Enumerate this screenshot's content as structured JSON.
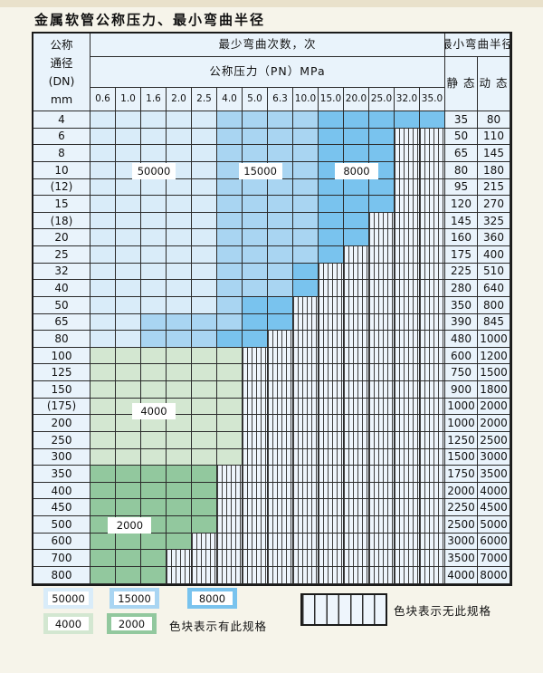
{
  "title": "金属软管公称压力、最小弯曲半径",
  "table": {
    "corner_header": [
      "公称",
      "通径",
      "(DN)",
      "mm"
    ],
    "bend_cycles_header": "最少弯曲次数，次",
    "radius_header": "最小弯曲半径",
    "pressure_header": "公称压力（PN）MPa",
    "static_label": "静 态",
    "dynamic_label": "动 态",
    "pressures": [
      "0.6",
      "1.0",
      "1.6",
      "2.0",
      "2.5",
      "4.0",
      "5.0",
      "6.3",
      "10.0",
      "15.0",
      "20.0",
      "25.0",
      "32.0",
      "35.0"
    ],
    "rows": [
      {
        "dn": "4",
        "static": "35",
        "dynamic": "80",
        "zones": [
          [
            "50000",
            5
          ],
          [
            "15000",
            4
          ],
          [
            "8000",
            5
          ]
        ]
      },
      {
        "dn": "6",
        "static": "50",
        "dynamic": "110",
        "zones": [
          [
            "50000",
            5
          ],
          [
            "15000",
            4
          ],
          [
            "8000",
            3
          ]
        ]
      },
      {
        "dn": "8",
        "static": "65",
        "dynamic": "145",
        "zones": [
          [
            "50000",
            5
          ],
          [
            "15000",
            4
          ],
          [
            "8000",
            3
          ]
        ]
      },
      {
        "dn": "10",
        "static": "80",
        "dynamic": "180",
        "zones": [
          [
            "50000",
            5
          ],
          [
            "15000",
            4
          ],
          [
            "8000",
            3
          ]
        ]
      },
      {
        "dn": "(12)",
        "static": "95",
        "dynamic": "215",
        "zones": [
          [
            "50000",
            5
          ],
          [
            "15000",
            4
          ],
          [
            "8000",
            3
          ]
        ]
      },
      {
        "dn": "15",
        "static": "120",
        "dynamic": "270",
        "zones": [
          [
            "50000",
            5
          ],
          [
            "15000",
            4
          ],
          [
            "8000",
            3
          ]
        ]
      },
      {
        "dn": "(18)",
        "static": "145",
        "dynamic": "325",
        "zones": [
          [
            "50000",
            5
          ],
          [
            "15000",
            4
          ],
          [
            "8000",
            2
          ]
        ]
      },
      {
        "dn": "20",
        "static": "160",
        "dynamic": "360",
        "zones": [
          [
            "50000",
            5
          ],
          [
            "15000",
            4
          ],
          [
            "8000",
            2
          ]
        ]
      },
      {
        "dn": "25",
        "static": "175",
        "dynamic": "400",
        "zones": [
          [
            "50000",
            5
          ],
          [
            "15000",
            4
          ],
          [
            "8000",
            1
          ]
        ]
      },
      {
        "dn": "32",
        "static": "225",
        "dynamic": "510",
        "zones": [
          [
            "50000",
            5
          ],
          [
            "15000",
            3
          ],
          [
            "8000",
            1
          ]
        ]
      },
      {
        "dn": "40",
        "static": "280",
        "dynamic": "640",
        "zones": [
          [
            "50000",
            5
          ],
          [
            "15000",
            3
          ],
          [
            "8000",
            1
          ]
        ]
      },
      {
        "dn": "50",
        "static": "350",
        "dynamic": "800",
        "zones": [
          [
            "50000",
            5
          ],
          [
            "15000",
            1
          ],
          [
            "8000",
            2
          ]
        ]
      },
      {
        "dn": "65",
        "static": "390",
        "dynamic": "845",
        "zones": [
          [
            "50000",
            2
          ],
          [
            "15000",
            4
          ],
          [
            "8000",
            2
          ]
        ]
      },
      {
        "dn": "80",
        "static": "480",
        "dynamic": "1000",
        "zones": [
          [
            "50000",
            2
          ],
          [
            "15000",
            3
          ],
          [
            "8000",
            2
          ]
        ]
      },
      {
        "dn": "100",
        "static": "600",
        "dynamic": "1200",
        "zones": [
          [
            "4000",
            6
          ]
        ]
      },
      {
        "dn": "125",
        "static": "750",
        "dynamic": "1500",
        "zones": [
          [
            "4000",
            6
          ]
        ]
      },
      {
        "dn": "150",
        "static": "900",
        "dynamic": "1800",
        "zones": [
          [
            "4000",
            6
          ]
        ]
      },
      {
        "dn": "(175)",
        "static": "1000",
        "dynamic": "2000",
        "zones": [
          [
            "4000",
            6
          ]
        ]
      },
      {
        "dn": "200",
        "static": "1000",
        "dynamic": "2000",
        "zones": [
          [
            "4000",
            6
          ]
        ]
      },
      {
        "dn": "250",
        "static": "1250",
        "dynamic": "2500",
        "zones": [
          [
            "4000",
            6
          ]
        ]
      },
      {
        "dn": "300",
        "static": "1500",
        "dynamic": "3000",
        "zones": [
          [
            "4000",
            6
          ]
        ]
      },
      {
        "dn": "350",
        "static": "1750",
        "dynamic": "3500",
        "zones": [
          [
            "2000",
            5
          ]
        ]
      },
      {
        "dn": "400",
        "static": "2000",
        "dynamic": "4000",
        "zones": [
          [
            "2000",
            5
          ]
        ]
      },
      {
        "dn": "450",
        "static": "2250",
        "dynamic": "4500",
        "zones": [
          [
            "2000",
            5
          ]
        ]
      },
      {
        "dn": "500",
        "static": "2500",
        "dynamic": "5000",
        "zones": [
          [
            "2000",
            5
          ]
        ]
      },
      {
        "dn": "600",
        "static": "3000",
        "dynamic": "6000",
        "zones": [
          [
            "2000",
            4
          ]
        ]
      },
      {
        "dn": "700",
        "static": "3500",
        "dynamic": "7000",
        "zones": [
          [
            "2000",
            3
          ]
        ]
      },
      {
        "dn": "800",
        "static": "4000",
        "dynamic": "8000",
        "zones": [
          [
            "2000",
            3
          ]
        ]
      }
    ],
    "column_count": 14
  },
  "annotations": [
    {
      "text": "50000",
      "col": 2.5,
      "row": 3.55
    },
    {
      "text": "15000",
      "col": 6.7,
      "row": 3.55
    },
    {
      "text": "8000",
      "col": 10.5,
      "row": 3.55
    },
    {
      "text": "4000",
      "col": 2.5,
      "row": 17.75
    },
    {
      "text": "2000",
      "col": 1.55,
      "row": 24.5
    }
  ],
  "legend": {
    "swatches": [
      {
        "label": "50000",
        "zone": "50000"
      },
      {
        "label": "15000",
        "zone": "15000"
      },
      {
        "label": "8000",
        "zone": "8000"
      },
      {
        "label": "4000",
        "zone": "4000"
      },
      {
        "label": "2000",
        "zone": "2000"
      }
    ],
    "has_spec_label": "色块表示有此规格",
    "no_spec_label": "色块表示无此规格"
  },
  "colors": {
    "zone_50000": "#d9ecf9",
    "zone_15000": "#a9d5f2",
    "zone_8000": "#79c3ee",
    "zone_4000": "#d3e7d1",
    "zone_2000": "#92c89e",
    "header_bg": "#e9f3fb",
    "hatch_bg": "#eef5fc",
    "grid_line": "#2b2b2b"
  },
  "chart_data": {
    "type": "table",
    "title": "金属软管公称压力、最小弯曲半径",
    "x_categories_pressure_MPa": [
      "0.6",
      "1.0",
      "1.6",
      "2.0",
      "2.5",
      "4.0",
      "5.0",
      "6.3",
      "10.0",
      "15.0",
      "20.0",
      "25.0",
      "32.0",
      "35.0"
    ],
    "y_categories_DN_mm": [
      "4",
      "6",
      "8",
      "10",
      "(12)",
      "15",
      "(18)",
      "20",
      "25",
      "32",
      "40",
      "50",
      "65",
      "80",
      "100",
      "125",
      "150",
      "(175)",
      "200",
      "250",
      "300",
      "350",
      "400",
      "450",
      "500",
      "600",
      "700",
      "800"
    ],
    "zone_values_bend_cycles": [
      "50000",
      "15000",
      "8000",
      "4000",
      "2000"
    ],
    "legend_note_has": "色块表示有此规格",
    "legend_note_none": "色块表示无此规格"
  }
}
